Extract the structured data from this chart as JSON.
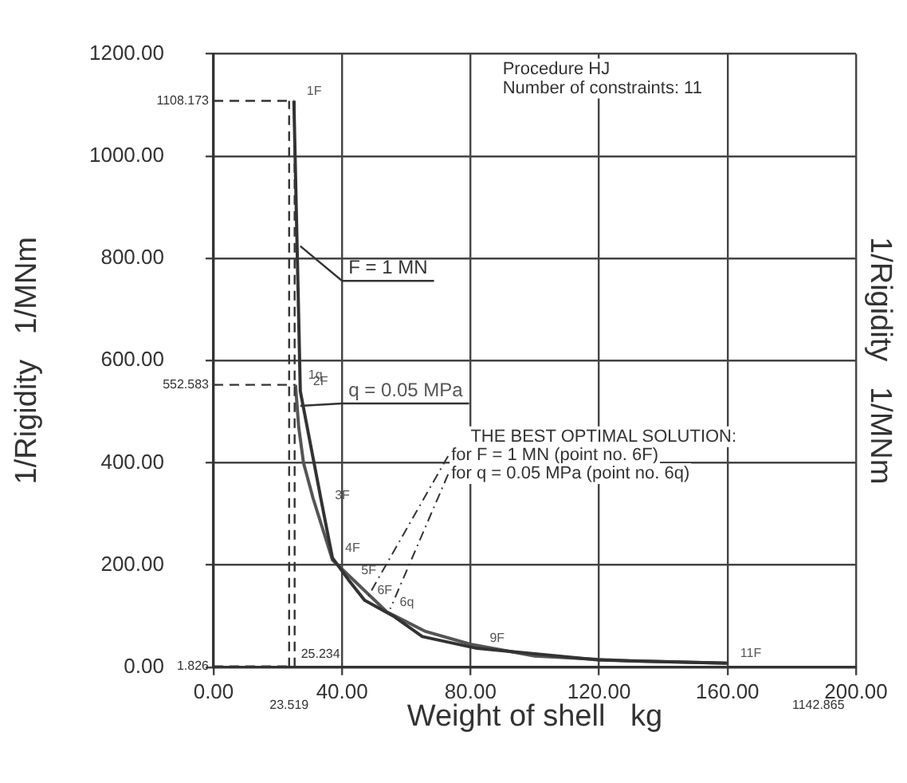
{
  "chart_data": {
    "type": "line",
    "xlabel": "Weight of shell   kg",
    "ylabel": "1/Rigidity   1/MNm",
    "y2label": "1/Rigidity   1/MNm",
    "xlim": [
      0,
      200
    ],
    "ylim": [
      0,
      1200
    ],
    "xticks": [
      {
        "value": 0,
        "label": "0.00"
      },
      {
        "value": 40,
        "label": "40.00"
      },
      {
        "value": 80,
        "label": "80.00"
      },
      {
        "value": 120,
        "label": "120.00"
      },
      {
        "value": 160,
        "label": "160.00"
      },
      {
        "value": 200,
        "label": "200.00"
      }
    ],
    "yticks": [
      {
        "value": 0,
        "label": "0.00"
      },
      {
        "value": 200,
        "label": "200.00"
      },
      {
        "value": 400,
        "label": "400.00"
      },
      {
        "value": 600,
        "label": "600.00"
      },
      {
        "value": 800,
        "label": "800.00"
      },
      {
        "value": 1000,
        "label": "1000.00"
      },
      {
        "value": 1200,
        "label": "1200.00"
      }
    ],
    "grid": true,
    "legend": false,
    "marker": "none",
    "series": [
      {
        "name": "F = 1 MN",
        "color": "#333333",
        "x": [
          25,
          27,
          33.8,
          37,
          42,
          47,
          56,
          65,
          82,
          120,
          160
        ],
        "values": [
          1108.173,
          540,
          317,
          214,
          171,
          131,
          100,
          60,
          37,
          14,
          8
        ]
      },
      {
        "name": "q = 0.05 MPa",
        "color": "#555555",
        "x": [
          25.5,
          26.5,
          28,
          31,
          37,
          54,
          66,
          80,
          100,
          130,
          160
        ],
        "values": [
          552.583,
          470,
          400,
          330,
          210,
          108,
          70,
          45,
          22,
          12,
          8
        ]
      }
    ],
    "ref_lines": [
      {
        "axis": "y",
        "value": 1108.173,
        "label": "1108.173",
        "line_style": "dashed"
      },
      {
        "axis": "y",
        "value": 552.583,
        "label": "552.583",
        "line_style": "dashed"
      },
      {
        "axis": "y",
        "value": 1.826,
        "label": "1.826",
        "line_style": "dashed"
      },
      {
        "axis": "x",
        "value": 23.519,
        "label": "23.519",
        "line_style": "dashed"
      },
      {
        "axis": "x",
        "value": 25.234,
        "label": "25.234",
        "line_style": "dashed"
      }
    ],
    "annotations": [
      "Procedure HJ",
      "Number of constraints: 11",
      "THE BEST OPTIMAL SOLUTION:",
      {
        "text": "for F = 1 MN (point no. 6F)",
        "x": 47,
        "y": 131
      },
      {
        "text": "for q = 0.05 MPa (point no. 6q)",
        "x": 54,
        "y": 108
      },
      "1142.865",
      {
        "text": "1F",
        "x": 25,
        "y": 1108.173
      },
      {
        "text": "1q",
        "x": 25.5,
        "y": 552.583
      },
      {
        "text": "2F",
        "x": 27,
        "y": 540
      },
      {
        "text": "3F",
        "x": 33.8,
        "y": 317
      },
      {
        "text": "4F",
        "x": 37,
        "y": 214
      },
      {
        "text": "5F",
        "x": 42,
        "y": 171
      },
      {
        "text": "6F",
        "x": 47,
        "y": 131
      },
      {
        "text": "6q",
        "x": 54,
        "y": 108
      },
      {
        "text": "9F",
        "x": 82,
        "y": 37
      },
      {
        "text": "11F",
        "x": 160,
        "y": 8
      }
    ]
  }
}
